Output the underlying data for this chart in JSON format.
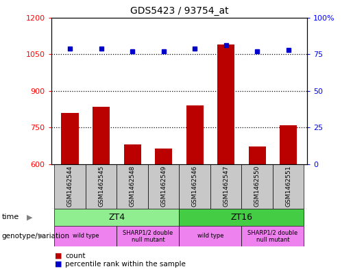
{
  "title": "GDS5423 / 93754_at",
  "samples": [
    "GSM1462544",
    "GSM1462545",
    "GSM1462548",
    "GSM1462549",
    "GSM1462546",
    "GSM1462547",
    "GSM1462550",
    "GSM1462551"
  ],
  "counts": [
    810,
    835,
    680,
    665,
    840,
    1090,
    672,
    760
  ],
  "percentiles": [
    79,
    79,
    77,
    77,
    79,
    81,
    77,
    78
  ],
  "y_left_min": 600,
  "y_left_max": 1200,
  "y_right_min": 0,
  "y_right_max": 100,
  "y_left_ticks": [
    600,
    750,
    900,
    1050,
    1200
  ],
  "y_right_ticks": [
    0,
    25,
    50,
    75,
    100
  ],
  "y_right_labels": [
    "0",
    "25",
    "50",
    "75",
    "100%"
  ],
  "bar_color": "#bb0000",
  "dot_color": "#0000cc",
  "bg_color": "#c8c8c8",
  "time_color_zt4": "#90ee90",
  "time_color_zt16": "#44cc44",
  "genotype_color": "#ee82ee",
  "legend_count_label": "count",
  "legend_pct_label": "percentile rank within the sample",
  "time_label": "time",
  "genotype_label": "genotype/variation",
  "dotted_ticks": [
    750,
    900,
    1050
  ],
  "time_groups": [
    {
      "label": "ZT4",
      "xmin": -0.5,
      "xmax": 3.5,
      "color": "#90ee90"
    },
    {
      "label": "ZT16",
      "xmin": 3.5,
      "xmax": 7.5,
      "color": "#44cc44"
    }
  ],
  "geno_groups": [
    {
      "label": "wild type",
      "xmin": -0.5,
      "xmax": 1.5
    },
    {
      "label": "SHARP1/2 double\nnull mutant",
      "xmin": 1.5,
      "xmax": 3.5
    },
    {
      "label": "wild type",
      "xmin": 3.5,
      "xmax": 5.5
    },
    {
      "label": "SHARP1/2 double\nnull mutant",
      "xmin": 5.5,
      "xmax": 7.5
    }
  ]
}
